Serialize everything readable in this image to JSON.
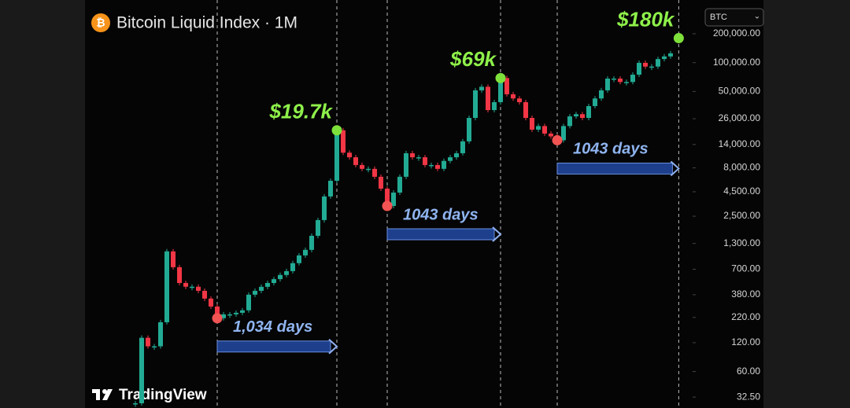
{
  "header": {
    "title": "Bitcoin Liquid Index · 1M",
    "symbol": "BTC",
    "brand": "TradingView"
  },
  "chart_data": {
    "type": "candlestick",
    "log_scale": true,
    "up_color": "#22ab94",
    "down_color": "#f23645",
    "values": [
      28,
      135,
      110,
      110,
      196,
      1075,
      735,
      503,
      460,
      460,
      417,
      346,
      286,
      216,
      237,
      237,
      246,
      261,
      380,
      417,
      459,
      503,
      552,
      610,
      669,
      810,
      976,
      1115,
      1563,
      2280,
      4020,
      5860,
      19700,
      11500,
      10300,
      8550,
      7800,
      7800,
      6450,
      4850,
      3200,
      4410,
      6450,
      11350,
      10300,
      10300,
      8550,
      8550,
      7800,
      9440,
      10300,
      11350,
      15100,
      26500,
      51400,
      56000,
      32000,
      38700,
      69000,
      46800,
      42300,
      38700,
      26500,
      20000,
      21800,
      18200,
      17000,
      15500,
      21800,
      27500,
      29000,
      26500,
      35200,
      42300,
      51400,
      68200,
      68200,
      62800,
      62800,
      74900,
      99500,
      91000,
      91000,
      109000,
      116000,
      125000
    ],
    "ylim": [
      25,
      450000
    ],
    "yticks": [
      {
        "value": 200000,
        "label": "200,000.00"
      },
      {
        "value": 100000,
        "label": "100,000.00"
      },
      {
        "value": 50000,
        "label": "50,000.00"
      },
      {
        "value": 26000,
        "label": "26,000.00"
      },
      {
        "value": 14000,
        "label": "14,000.00"
      },
      {
        "value": 8000,
        "label": "8,000.00"
      },
      {
        "value": 4500,
        "label": "4,500.00"
      },
      {
        "value": 2500,
        "label": "2,500.00"
      },
      {
        "value": 1300,
        "label": "1,300.00"
      },
      {
        "value": 700,
        "label": "700.00"
      },
      {
        "value": 380,
        "label": "380.00"
      },
      {
        "value": 220,
        "label": "220.00"
      },
      {
        "value": 120,
        "label": "120.00"
      },
      {
        "value": 60,
        "label": "60.00"
      },
      {
        "value": 32.5,
        "label": "32.50"
      }
    ],
    "troughs": [
      {
        "value": 216
      },
      {
        "value": 3200
      },
      {
        "value": 15500
      }
    ],
    "peaks": [
      {
        "value": 19700,
        "label": "$19.7k"
      },
      {
        "value": 69000,
        "label": "$69k"
      },
      {
        "value": 180000,
        "label": "$180k"
      }
    ],
    "spans": [
      {
        "value": 1034,
        "label": "1,034 days"
      },
      {
        "value": 1043,
        "label": "1043 days"
      },
      {
        "value": 1043,
        "label": "1043 days"
      }
    ]
  }
}
